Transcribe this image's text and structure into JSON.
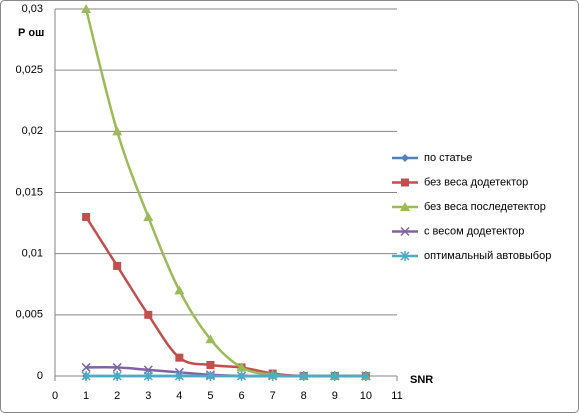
{
  "chart_data": {
    "type": "line",
    "ylabel": "Р ош",
    "xlabel": "SNR",
    "x": [
      1,
      2,
      3,
      4,
      5,
      6,
      7,
      8,
      9,
      10
    ],
    "series": [
      {
        "name": "по статье",
        "color": "#4f81bd",
        "marker": "diamond",
        "values": [
          0,
          0,
          0,
          0,
          0,
          0,
          0,
          0,
          0,
          0
        ]
      },
      {
        "name": "без веса додетектор",
        "color": "#c0504d",
        "marker": "square",
        "values": [
          0.013,
          0.009,
          0.005,
          0.0015,
          0.0009,
          0.0007,
          0.0002,
          0,
          0,
          0
        ]
      },
      {
        "name": "без веса последетектор",
        "color": "#9bbb59",
        "marker": "triangle",
        "values": [
          0.03,
          0.02,
          0.013,
          0.007,
          0.003,
          0.0007,
          0.0001,
          0,
          0,
          0
        ]
      },
      {
        "name": "с весом додетектор",
        "color": "#8064a2",
        "marker": "x",
        "values": [
          0.0007,
          0.0007,
          0.0005,
          0.0003,
          0.0001,
          0,
          0,
          0,
          0,
          0
        ]
      },
      {
        "name": "оптимальный автовыбор",
        "color": "#4bacc6",
        "marker": "star",
        "values": [
          0,
          0,
          0,
          0,
          0,
          0,
          0,
          0,
          0,
          0
        ]
      }
    ],
    "xlim": [
      0,
      11
    ],
    "xticks": [
      0,
      1,
      2,
      3,
      4,
      5,
      6,
      7,
      8,
      9,
      10,
      11
    ],
    "ylim": [
      0,
      0.03
    ],
    "yticks": [
      0,
      {
        "value": 0.005,
        "label": "0,005"
      },
      {
        "value": 0.01,
        "label": "0,01"
      },
      {
        "value": 0.015,
        "label": "0,015"
      },
      {
        "value": 0.02,
        "label": "0,02"
      },
      {
        "value": 0.025,
        "label": "0,025"
      },
      {
        "value": 0.03,
        "label": "0,03"
      }
    ],
    "grid": true,
    "legend": "right"
  }
}
